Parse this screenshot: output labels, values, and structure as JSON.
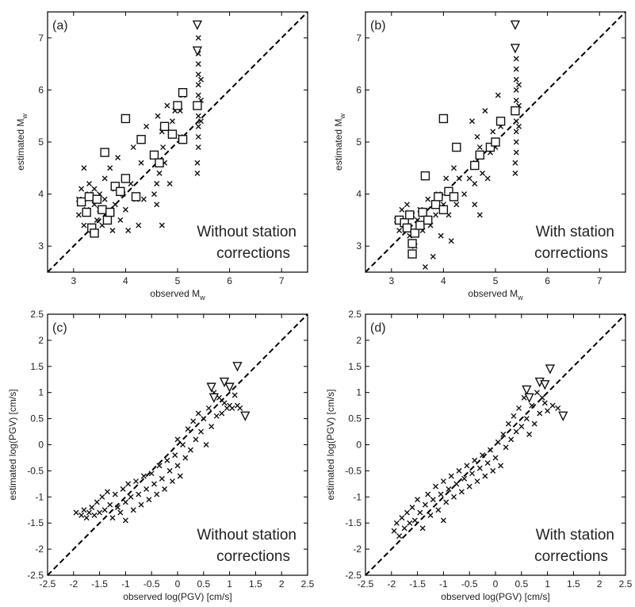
{
  "chart_data": [
    {
      "id": "a",
      "type": "scatter",
      "panel_label": "(a)",
      "xlabel": "observed M",
      "xlabel_sub": "w",
      "ylabel": "estimated M",
      "ylabel_sub": "w",
      "xlim": [
        2.5,
        7.5
      ],
      "ylim": [
        2.5,
        7.5
      ],
      "xticks": [
        3,
        4,
        5,
        6,
        7
      ],
      "yticks": [
        3,
        4,
        5,
        6,
        7
      ],
      "annotation": [
        "Without station",
        "corrections"
      ],
      "annotation_position": "bottom-right",
      "reference_line": "y=x dashed",
      "crosses": [
        [
          3.1,
          3.6
        ],
        [
          3.1,
          3.9
        ],
        [
          3.15,
          4.1
        ],
        [
          3.2,
          4.5
        ],
        [
          3.2,
          3.4
        ],
        [
          3.25,
          3.7
        ],
        [
          3.3,
          4.0
        ],
        [
          3.3,
          4.2
        ],
        [
          3.35,
          3.3
        ],
        [
          3.4,
          3.8
        ],
        [
          3.4,
          4.1
        ],
        [
          3.45,
          3.5
        ],
        [
          3.5,
          3.7
        ],
        [
          3.5,
          4.0
        ],
        [
          3.55,
          3.4
        ],
        [
          3.6,
          3.9
        ],
        [
          3.6,
          4.3
        ],
        [
          3.65,
          3.6
        ],
        [
          3.7,
          4.5
        ],
        [
          3.75,
          3.3
        ],
        [
          3.8,
          3.8
        ],
        [
          3.8,
          4.1
        ],
        [
          3.85,
          4.7
        ],
        [
          3.9,
          3.5
        ],
        [
          3.95,
          4.0
        ],
        [
          4.0,
          4.3
        ],
        [
          4.0,
          3.7
        ],
        [
          4.05,
          3.3
        ],
        [
          4.1,
          4.2
        ],
        [
          4.15,
          4.9
        ],
        [
          4.2,
          3.9
        ],
        [
          4.25,
          3.4
        ],
        [
          4.3,
          4.6
        ],
        [
          4.35,
          3.9
        ],
        [
          4.4,
          5.3
        ],
        [
          4.55,
          4.0
        ],
        [
          4.6,
          3.8
        ],
        [
          4.6,
          4.2
        ],
        [
          4.62,
          5.5
        ],
        [
          4.65,
          4.4
        ],
        [
          4.7,
          5.2
        ],
        [
          4.7,
          3.4
        ],
        [
          4.72,
          4.9
        ],
        [
          4.75,
          4.6
        ],
        [
          4.8,
          5.7
        ],
        [
          4.85,
          4.2
        ],
        [
          4.9,
          5.4
        ],
        [
          4.95,
          5.6
        ],
        [
          5.05,
          5.1
        ],
        [
          5.05,
          5.6
        ],
        [
          5.1,
          5.9
        ],
        [
          5.38,
          4.4
        ],
        [
          5.38,
          4.6
        ],
        [
          5.4,
          4.9
        ],
        [
          5.4,
          5.1
        ],
        [
          5.4,
          5.3
        ],
        [
          5.4,
          5.5
        ],
        [
          5.4,
          5.7
        ],
        [
          5.4,
          5.9
        ],
        [
          5.4,
          6.1
        ],
        [
          5.4,
          6.3
        ],
        [
          5.4,
          6.5
        ],
        [
          5.4,
          6.7
        ],
        [
          5.4,
          7.0
        ],
        [
          5.45,
          5.4
        ],
        [
          5.45,
          5.8
        ],
        [
          5.45,
          6.2
        ]
      ],
      "squares": [
        [
          3.15,
          3.85
        ],
        [
          3.25,
          3.65
        ],
        [
          3.3,
          3.95
        ],
        [
          3.35,
          3.35
        ],
        [
          3.4,
          3.25
        ],
        [
          3.45,
          3.9
        ],
        [
          3.55,
          3.7
        ],
        [
          3.6,
          4.8
        ],
        [
          3.65,
          3.5
        ],
        [
          3.7,
          3.65
        ],
        [
          3.8,
          4.15
        ],
        [
          3.9,
          4.05
        ],
        [
          4.0,
          4.3
        ],
        [
          4.0,
          5.45
        ],
        [
          4.2,
          3.95
        ],
        [
          4.3,
          5.05
        ],
        [
          4.55,
          4.75
        ],
        [
          4.65,
          4.6
        ],
        [
          4.75,
          5.3
        ],
        [
          4.9,
          5.15
        ],
        [
          5.0,
          5.7
        ],
        [
          5.1,
          5.95
        ],
        [
          5.1,
          5.05
        ],
        [
          5.38,
          5.7
        ]
      ],
      "triangles": [
        [
          5.38,
          7.25
        ],
        [
          5.38,
          6.75
        ]
      ]
    },
    {
      "id": "b",
      "type": "scatter",
      "panel_label": "(b)",
      "xlabel": "observed M",
      "xlabel_sub": "w",
      "ylabel": "estimated M",
      "ylabel_sub": "w",
      "xlim": [
        2.5,
        7.5
      ],
      "ylim": [
        2.5,
        7.5
      ],
      "xticks": [
        3,
        4,
        5,
        6,
        7
      ],
      "yticks": [
        3,
        4,
        5,
        6,
        7
      ],
      "annotation": [
        "With station",
        "corrections"
      ],
      "annotation_position": "bottom-right",
      "reference_line": "y=x dashed",
      "crosses": [
        [
          3.1,
          3.5
        ],
        [
          3.15,
          3.3
        ],
        [
          3.2,
          3.7
        ],
        [
          3.25,
          3.4
        ],
        [
          3.3,
          3.8
        ],
        [
          3.35,
          3.2
        ],
        [
          3.4,
          3.6
        ],
        [
          3.45,
          3.0
        ],
        [
          3.5,
          3.5
        ],
        [
          3.55,
          3.7
        ],
        [
          3.6,
          3.3
        ],
        [
          3.65,
          2.6
        ],
        [
          3.7,
          3.9
        ],
        [
          3.75,
          3.4
        ],
        [
          3.8,
          2.8
        ],
        [
          3.85,
          3.6
        ],
        [
          3.9,
          4.0
        ],
        [
          3.95,
          3.2
        ],
        [
          4.0,
          3.8
        ],
        [
          4.05,
          4.3
        ],
        [
          4.1,
          3.6
        ],
        [
          4.15,
          3.1
        ],
        [
          4.2,
          4.5
        ],
        [
          4.25,
          3.8
        ],
        [
          4.3,
          4.3
        ],
        [
          4.4,
          4.0
        ],
        [
          4.5,
          4.3
        ],
        [
          4.55,
          5.4
        ],
        [
          4.6,
          3.8
        ],
        [
          4.6,
          4.2
        ],
        [
          4.62,
          4.6
        ],
        [
          4.65,
          5.1
        ],
        [
          4.7,
          3.6
        ],
        [
          4.7,
          4.9
        ],
        [
          4.75,
          4.4
        ],
        [
          4.8,
          5.6
        ],
        [
          4.85,
          4.3
        ],
        [
          4.9,
          4.8
        ],
        [
          4.95,
          5.2
        ],
        [
          5.0,
          4.9
        ],
        [
          5.05,
          5.9
        ],
        [
          5.1,
          5.3
        ],
        [
          5.38,
          4.4
        ],
        [
          5.38,
          4.6
        ],
        [
          5.4,
          4.8
        ],
        [
          5.4,
          5.0
        ],
        [
          5.4,
          5.2
        ],
        [
          5.4,
          5.4
        ],
        [
          5.4,
          5.6
        ],
        [
          5.4,
          5.8
        ],
        [
          5.4,
          6.0
        ],
        [
          5.4,
          6.2
        ],
        [
          5.4,
          6.4
        ],
        [
          5.4,
          6.6
        ],
        [
          5.45,
          5.3
        ],
        [
          5.45,
          5.7
        ],
        [
          5.45,
          6.1
        ]
      ],
      "squares": [
        [
          3.15,
          3.5
        ],
        [
          3.25,
          3.45
        ],
        [
          3.3,
          3.35
        ],
        [
          3.35,
          3.6
        ],
        [
          3.4,
          3.05
        ],
        [
          3.4,
          2.85
        ],
        [
          3.45,
          3.25
        ],
        [
          3.55,
          3.4
        ],
        [
          3.6,
          3.65
        ],
        [
          3.65,
          4.35
        ],
        [
          3.7,
          3.5
        ],
        [
          3.85,
          3.8
        ],
        [
          3.9,
          3.95
        ],
        [
          4.0,
          3.7
        ],
        [
          4.0,
          5.45
        ],
        [
          4.1,
          4.05
        ],
        [
          4.2,
          3.95
        ],
        [
          4.25,
          4.9
        ],
        [
          4.6,
          4.55
        ],
        [
          4.7,
          4.75
        ],
        [
          4.9,
          4.9
        ],
        [
          5.0,
          5.0
        ],
        [
          5.1,
          5.4
        ],
        [
          5.38,
          5.6
        ]
      ],
      "triangles": [
        [
          5.38,
          7.25
        ],
        [
          5.38,
          6.8
        ]
      ]
    },
    {
      "id": "c",
      "type": "scatter",
      "panel_label": "(c)",
      "xlabel": "observed log(PGV) [cm/s]",
      "ylabel": "estimated log(PGV) [cm/s]",
      "xlim": [
        -2.5,
        2.5
      ],
      "ylim": [
        -2.5,
        2.5
      ],
      "xticks": [
        -2.5,
        -2,
        -1.5,
        -1,
        -0.5,
        0,
        0.5,
        1,
        1.5,
        2,
        2.5
      ],
      "yticks": [
        -2.5,
        -2,
        -1.5,
        -1,
        -0.5,
        0,
        0.5,
        1,
        1.5,
        2,
        2.5
      ],
      "annotation": [
        "Without station",
        "corrections"
      ],
      "annotation_position": "bottom-right",
      "reference_line": "y=x dashed",
      "crosses": [
        [
          -1.95,
          -1.3
        ],
        [
          -1.85,
          -1.35
        ],
        [
          -1.8,
          -1.25
        ],
        [
          -1.75,
          -1.4
        ],
        [
          -1.7,
          -1.3
        ],
        [
          -1.65,
          -1.2
        ],
        [
          -1.6,
          -1.35
        ],
        [
          -1.55,
          -1.1
        ],
        [
          -1.5,
          -1.3
        ],
        [
          -1.45,
          -1.0
        ],
        [
          -1.4,
          -1.25
        ],
        [
          -1.35,
          -0.9
        ],
        [
          -1.3,
          -1.15
        ],
        [
          -1.25,
          -1.4
        ],
        [
          -1.2,
          -0.95
        ],
        [
          -1.15,
          -1.2
        ],
        [
          -1.1,
          -1.3
        ],
        [
          -1.05,
          -0.85
        ],
        [
          -1.0,
          -1.1
        ],
        [
          -1.0,
          -1.45
        ],
        [
          -0.95,
          -0.75
        ],
        [
          -0.9,
          -1.0
        ],
        [
          -0.85,
          -1.25
        ],
        [
          -0.8,
          -0.7
        ],
        [
          -0.75,
          -0.95
        ],
        [
          -0.7,
          -1.15
        ],
        [
          -0.65,
          -0.6
        ],
        [
          -0.6,
          -0.85
        ],
        [
          -0.55,
          -1.05
        ],
        [
          -0.5,
          -0.55
        ],
        [
          -0.45,
          -0.75
        ],
        [
          -0.4,
          -0.95
        ],
        [
          -0.35,
          -0.4
        ],
        [
          -0.3,
          -0.65
        ],
        [
          -0.25,
          -0.85
        ],
        [
          -0.2,
          -0.3
        ],
        [
          -0.15,
          -0.5
        ],
        [
          -0.1,
          -0.7
        ],
        [
          -0.05,
          -0.2
        ],
        [
          0.0,
          -0.4
        ],
        [
          0.0,
          0.1
        ],
        [
          0.05,
          -0.6
        ],
        [
          0.1,
          0.0
        ],
        [
          0.15,
          -0.25
        ],
        [
          0.2,
          0.3
        ],
        [
          0.25,
          -0.1
        ],
        [
          0.3,
          0.45
        ],
        [
          0.35,
          0.1
        ],
        [
          0.4,
          0.6
        ],
        [
          0.45,
          0.25
        ],
        [
          0.5,
          0.5
        ],
        [
          0.55,
          0.0
        ],
        [
          0.6,
          0.7
        ],
        [
          0.65,
          0.35
        ],
        [
          0.7,
          1.0
        ],
        [
          0.75,
          0.55
        ],
        [
          0.8,
          0.9
        ],
        [
          0.85,
          0.6
        ],
        [
          0.9,
          0.8
        ],
        [
          0.95,
          0.7
        ],
        [
          1.0,
          0.75
        ],
        [
          1.05,
          0.7
        ],
        [
          1.1,
          0.95
        ],
        [
          1.15,
          0.75
        ],
        [
          1.2,
          0.7
        ]
      ],
      "triangles": [
        [
          0.65,
          1.1
        ],
        [
          0.7,
          0.9
        ],
        [
          0.9,
          1.2
        ],
        [
          1.0,
          1.1
        ],
        [
          1.15,
          1.5
        ],
        [
          1.3,
          0.55
        ]
      ]
    },
    {
      "id": "d",
      "type": "scatter",
      "panel_label": "(d)",
      "xlabel": "observed log(PGV) [cm/s]",
      "ylabel": "estimated log(PGV) [cm/s]",
      "xlim": [
        -2.5,
        2.5
      ],
      "ylim": [
        -2.5,
        2.5
      ],
      "xticks": [
        -2.5,
        -2,
        -1.5,
        -1,
        -0.5,
        0,
        0.5,
        1,
        1.5,
        2,
        2.5
      ],
      "yticks": [
        -2.5,
        -2,
        -1.5,
        -1,
        -0.5,
        0,
        0.5,
        1,
        1.5,
        2,
        2.5
      ],
      "annotation": [
        "With station",
        "corrections"
      ],
      "annotation_position": "bottom-right",
      "reference_line": "y=x dashed",
      "crosses": [
        [
          -1.95,
          -1.65
        ],
        [
          -1.9,
          -1.5
        ],
        [
          -1.85,
          -1.75
        ],
        [
          -1.8,
          -1.4
        ],
        [
          -1.75,
          -1.6
        ],
        [
          -1.7,
          -1.3
        ],
        [
          -1.65,
          -1.5
        ],
        [
          -1.6,
          -1.2
        ],
        [
          -1.55,
          -1.45
        ],
        [
          -1.5,
          -1.05
        ],
        [
          -1.45,
          -1.3
        ],
        [
          -1.4,
          -1.6
        ],
        [
          -1.35,
          -1.15
        ],
        [
          -1.3,
          -0.95
        ],
        [
          -1.25,
          -1.35
        ],
        [
          -1.2,
          -1.05
        ],
        [
          -1.15,
          -0.8
        ],
        [
          -1.1,
          -1.25
        ],
        [
          -1.05,
          -0.95
        ],
        [
          -1.0,
          -0.7
        ],
        [
          -1.0,
          -1.45
        ],
        [
          -0.95,
          -1.1
        ],
        [
          -0.9,
          -0.85
        ],
        [
          -0.85,
          -0.6
        ],
        [
          -0.8,
          -1.0
        ],
        [
          -0.75,
          -0.75
        ],
        [
          -0.7,
          -0.5
        ],
        [
          -0.65,
          -0.9
        ],
        [
          -0.6,
          -0.65
        ],
        [
          -0.55,
          -0.4
        ],
        [
          -0.5,
          -0.8
        ],
        [
          -0.45,
          -0.55
        ],
        [
          -0.4,
          -0.3
        ],
        [
          -0.35,
          -0.7
        ],
        [
          -0.3,
          -0.45
        ],
        [
          -0.25,
          -0.2
        ],
        [
          -0.2,
          -0.6
        ],
        [
          -0.15,
          -0.35
        ],
        [
          -0.1,
          -0.1
        ],
        [
          -0.05,
          -0.5
        ],
        [
          0.0,
          -0.25
        ],
        [
          0.05,
          0.05
        ],
        [
          0.1,
          -0.4
        ],
        [
          0.15,
          0.2
        ],
        [
          0.2,
          -0.05
        ],
        [
          0.25,
          0.4
        ],
        [
          0.3,
          0.1
        ],
        [
          0.35,
          0.55
        ],
        [
          0.4,
          0.25
        ],
        [
          0.45,
          0.7
        ],
        [
          0.5,
          0.35
        ],
        [
          0.55,
          0.9
        ],
        [
          0.6,
          0.5
        ],
        [
          0.65,
          0.2
        ],
        [
          0.7,
          0.75
        ],
        [
          0.75,
          0.4
        ],
        [
          0.8,
          1.0
        ],
        [
          0.85,
          0.6
        ],
        [
          0.9,
          0.9
        ],
        [
          0.95,
          0.8
        ],
        [
          1.0,
          0.65
        ],
        [
          1.1,
          0.75
        ],
        [
          1.2,
          0.7
        ]
      ],
      "triangles": [
        [
          0.6,
          1.05
        ],
        [
          0.65,
          0.9
        ],
        [
          0.85,
          1.2
        ],
        [
          0.95,
          1.15
        ],
        [
          1.05,
          1.45
        ],
        [
          1.3,
          0.55
        ]
      ]
    }
  ]
}
